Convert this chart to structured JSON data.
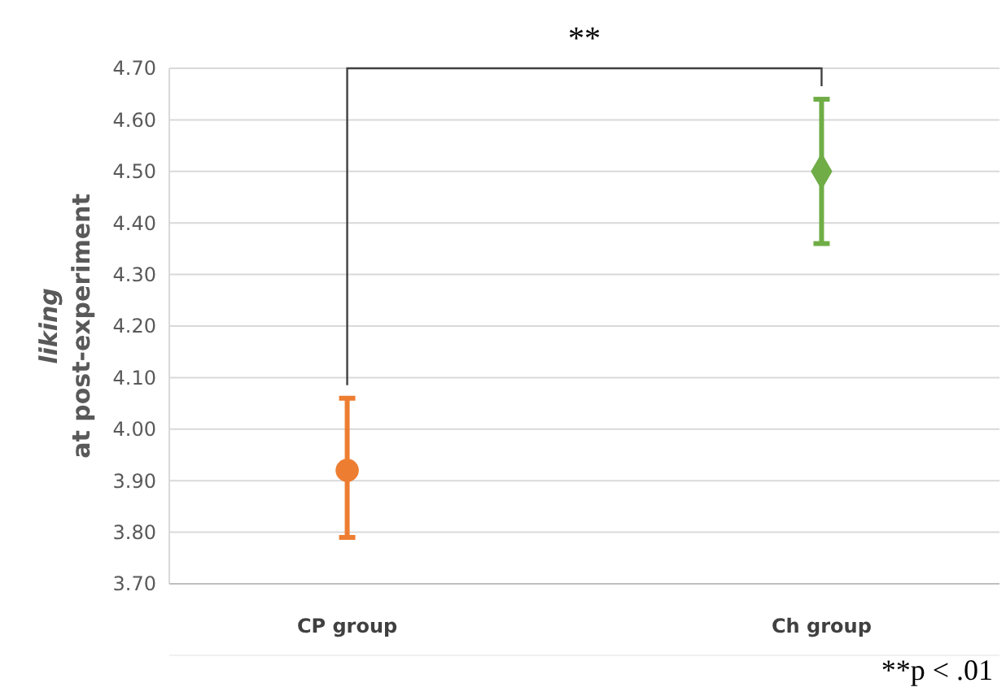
{
  "chart_data": {
    "type": "scatter",
    "ylabel": "liking\nat post-experiment",
    "categories": [
      "CP group",
      "Ch group"
    ],
    "series": [
      {
        "color": "#ed7d31",
        "marker": "circle",
        "values": [
          3.92,
          null
        ],
        "errors": [
          [
            3.79,
            4.06
          ],
          null
        ]
      },
      {
        "color": "#70ad47",
        "marker": "diamond",
        "values": [
          null,
          4.5
        ],
        "errors": [
          null,
          [
            4.36,
            4.64
          ]
        ]
      }
    ],
    "ylim": [
      3.7,
      4.7
    ],
    "yticks": [
      {
        "value": 3.7,
        "label": "3.70"
      },
      {
        "value": 3.8,
        "label": "3.80"
      },
      {
        "value": 3.9,
        "label": "3.90"
      },
      {
        "value": 4.0,
        "label": "4.00"
      },
      {
        "value": 4.1,
        "label": "4.10"
      },
      {
        "value": 4.2,
        "label": "4.20"
      },
      {
        "value": 4.3,
        "label": "4.30"
      },
      {
        "value": 4.4,
        "label": "4.40"
      },
      {
        "value": 4.5,
        "label": "4.50"
      },
      {
        "value": 4.6,
        "label": "4.60"
      },
      {
        "value": 4.7,
        "label": "4.70"
      }
    ],
    "grid": "y",
    "annotations": [
      "**",
      "**p < .01"
    ]
  }
}
